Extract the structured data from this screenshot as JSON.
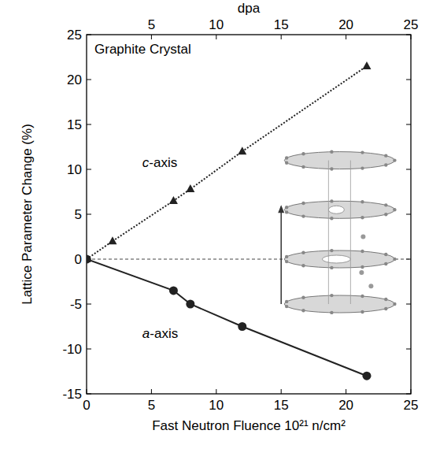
{
  "chart_data": {
    "type": "line",
    "x_label": "Fast Neutron Fluence 10²¹ n/cm²",
    "y_label": "Lattice Parameter Change (%)",
    "x2_label": "dpa",
    "annotations": [
      "Graphite Crystal"
    ],
    "xlim": [
      0,
      25
    ],
    "xticks": [
      0,
      5,
      10,
      15,
      20,
      25
    ],
    "x2lim": [
      0,
      25
    ],
    "x2ticks": [
      5,
      10,
      15,
      20,
      25
    ],
    "ylim": [
      -15,
      25
    ],
    "yticks": [
      -15,
      -10,
      -5,
      0,
      5,
      10,
      15,
      20,
      25
    ],
    "grid": false,
    "reference_line": {
      "y": 0,
      "line_style": "dashed"
    },
    "series": [
      {
        "name": "c-axis",
        "color": "#222222",
        "marker": "triangle",
        "line_style": "dotted",
        "x": [
          0,
          2,
          6.7,
          8,
          12,
          21.6
        ],
        "values": [
          0,
          2,
          6.5,
          7.8,
          12,
          21.5
        ]
      },
      {
        "name": "a-axis",
        "color": "#222222",
        "marker": "circle",
        "line_style": "solid",
        "x": [
          0,
          6.7,
          8,
          12,
          21.6
        ],
        "values": [
          0,
          -3.5,
          -5,
          -7.5,
          -13
        ]
      }
    ]
  }
}
